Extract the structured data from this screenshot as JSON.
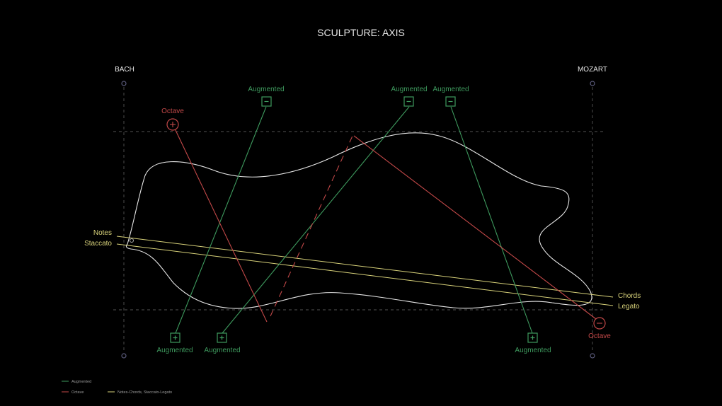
{
  "title": "SCULPTURE: AXIS",
  "axes": {
    "left_label": "BACH",
    "right_label": "MOZART"
  },
  "labels": {
    "augmented_top_1": "Augmented",
    "augmented_top_2": "Augmented",
    "augmented_top_3": "Augmented",
    "augmented_bottom_1": "Augmented",
    "augmented_bottom_2": "Augmented",
    "augmented_bottom_3": "Augmented",
    "octave_top": "Octave",
    "octave_bottom": "Octave",
    "notes": "Notes",
    "staccato": "Staccato",
    "chords": "Chords",
    "legato": "Legato"
  },
  "legend": {
    "augmented": "Augmented",
    "octave": "Octave",
    "notes": "Notes-Chords, Staccato-Legato"
  },
  "colors": {
    "background": "#000000",
    "augmented": "#3e9a5e",
    "octave": "#c24848",
    "notes": "#d8d27a",
    "outline": "#e6e6e6",
    "guide": "#555555",
    "axis_node": "#5a5a7a"
  },
  "icons": {
    "minus": "minus-square-icon",
    "plus": "plus-square-icon",
    "octave_plus": "plus-circle-icon",
    "octave_minus": "minus-circle-icon"
  }
}
